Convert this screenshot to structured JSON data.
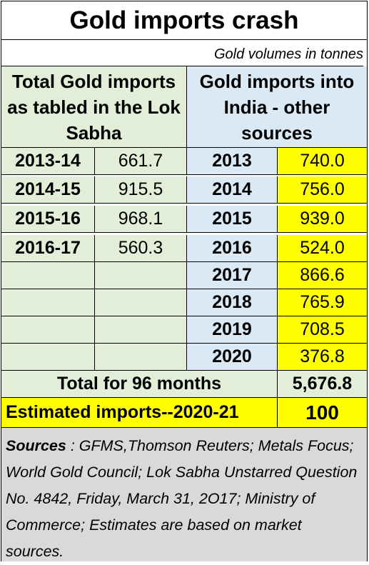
{
  "title": "Gold imports crash",
  "subtitle": "Gold volumes in tonnes",
  "left_header": "Total Gold imports as tabled in the Lok Sabha",
  "right_header": "Gold imports into India - other sources",
  "left_rows": [
    {
      "year": "2013-14",
      "value": "661.7"
    },
    {
      "year": "2014-15",
      "value": "915.5"
    },
    {
      "year": "2015-16",
      "value": "968.1"
    },
    {
      "year": "2016-17",
      "value": "560.3"
    },
    {
      "year": "",
      "value": ""
    },
    {
      "year": "",
      "value": ""
    },
    {
      "year": "",
      "value": ""
    },
    {
      "year": "",
      "value": ""
    }
  ],
  "right_rows": [
    {
      "year": "2013",
      "value": "740.0"
    },
    {
      "year": "2014",
      "value": "756.0"
    },
    {
      "year": "2015",
      "value": "939.0"
    },
    {
      "year": "2016",
      "value": "524.0"
    },
    {
      "year": "2017",
      "value": "866.6"
    },
    {
      "year": "2018",
      "value": "765.9"
    },
    {
      "year": "2019",
      "value": "708.5"
    },
    {
      "year": "2020",
      "value": "376.8"
    }
  ],
  "total": {
    "label": "Total for 96 months",
    "value": "5,676.8"
  },
  "estimate": {
    "label": "Estimated imports--2020-21",
    "value": "100"
  },
  "sources": {
    "label": "Sources",
    "text": " : GFMS,Thomson Reuters; Metals Focus; World Gold Council; Lok Sabha Unstarred Question No.  4842, Friday, March 31, 2O17; Ministry of Commerce; Estimates are based on market sources."
  },
  "colors": {
    "left_bg": "#e3eed8",
    "right_bg": "#dbe9f4",
    "highlight": "#ffff00",
    "sources_bg": "#d9d9d9"
  }
}
